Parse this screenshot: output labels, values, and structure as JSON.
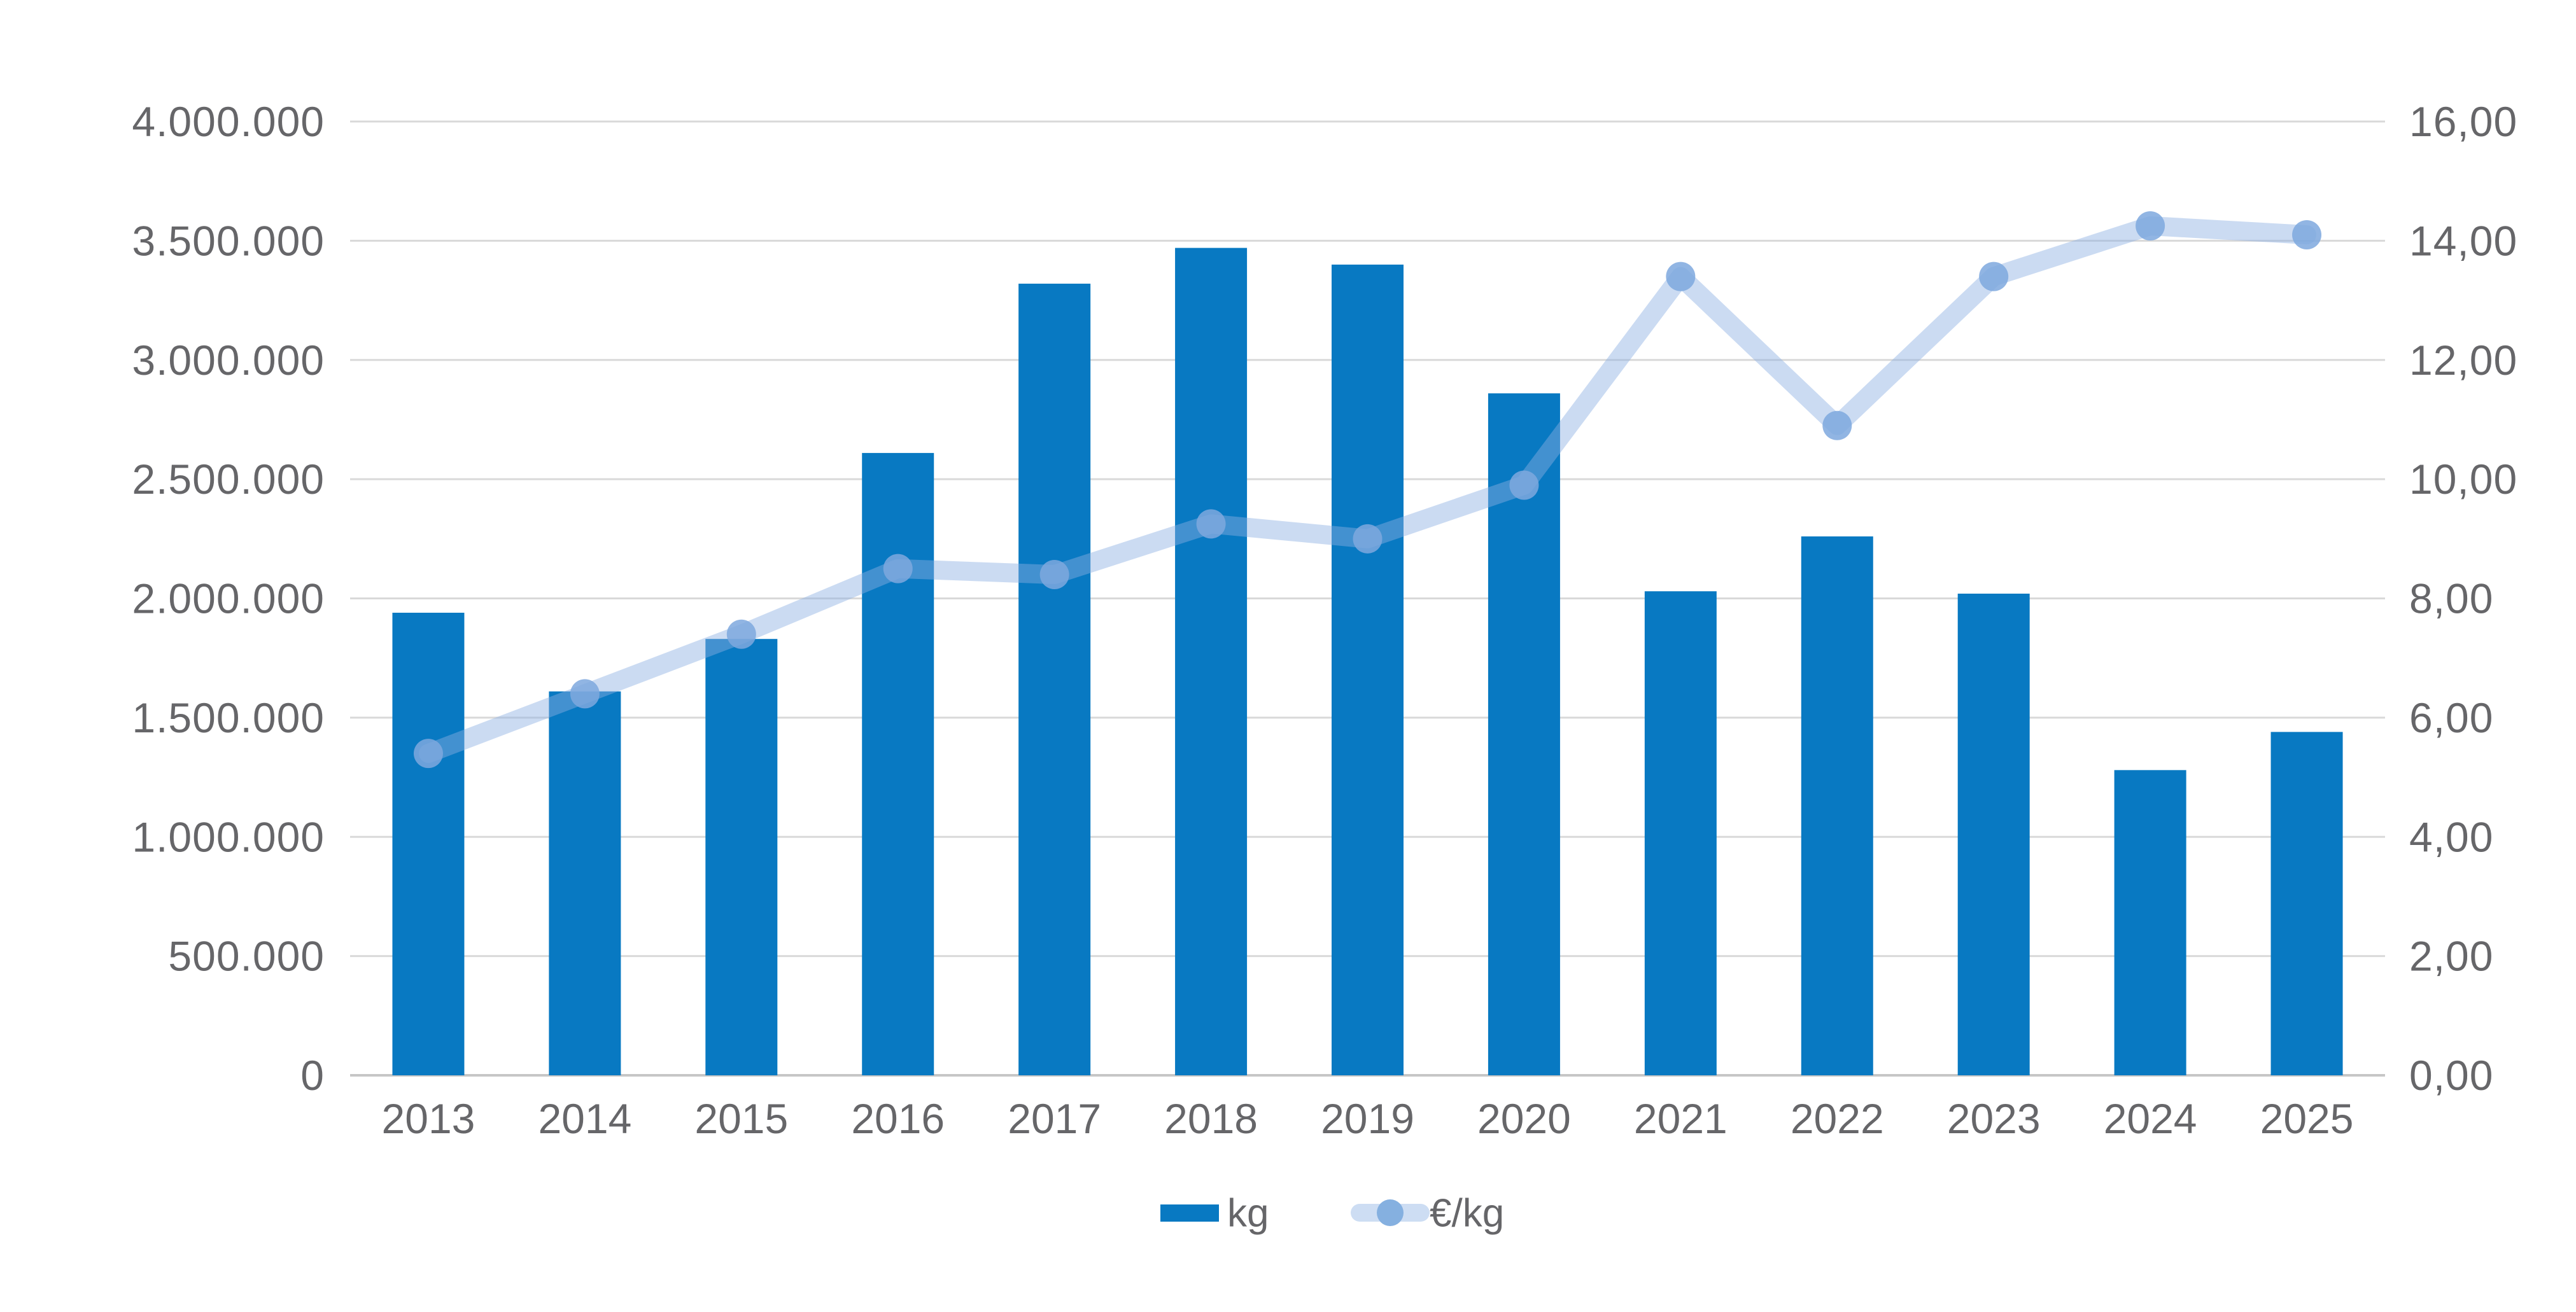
{
  "chart_data": {
    "type": "combo",
    "title": "",
    "categories": [
      "2013",
      "2014",
      "2015",
      "2016",
      "2017",
      "2018",
      "2019",
      "2020",
      "2021",
      "2022",
      "2023",
      "2024",
      "2025"
    ],
    "series": [
      {
        "name": "kg",
        "type": "bar",
        "axis": "left",
        "values": [
          1940000,
          1610000,
          1830000,
          2610000,
          3320000,
          3470000,
          3400000,
          2860000,
          2030000,
          2260000,
          2020000,
          1280000,
          1440000
        ]
      },
      {
        "name": "€/kg",
        "type": "line",
        "axis": "right",
        "values": [
          5.4,
          6.4,
          7.4,
          8.5,
          8.4,
          9.25,
          9.0,
          9.9,
          13.4,
          10.9,
          13.4,
          14.25,
          14.1
        ]
      }
    ],
    "left_axis": {
      "min": 0,
      "max": 4000000,
      "tick_step": 500000,
      "tick_labels": [
        "0",
        "500.000",
        "1.000.000",
        "1.500.000",
        "2.000.000",
        "2.500.000",
        "3.000.000",
        "3.500.000",
        "4.000.000"
      ]
    },
    "right_axis": {
      "min": 0,
      "max": 16,
      "tick_step": 2,
      "tick_labels": [
        "0,00",
        "2,00",
        "4,00",
        "6,00",
        "8,00",
        "10,00",
        "12,00",
        "14,00",
        "16,00"
      ]
    },
    "grid": true,
    "legend_position": "bottom"
  },
  "legend": {
    "kg_label": "kg",
    "eur_label": "€/kg"
  },
  "colors": {
    "bar": "#0879c2",
    "line": "rgba(140,175,226,0.45)",
    "line_flat": "#cdddf3",
    "marker": "rgba(126,168,222,0.85)",
    "marker_solid": "#85b0e0",
    "grid": "#d9d9d9",
    "baseline": "#c6c6c6",
    "text": "#666669",
    "background": "#ffffff"
  }
}
